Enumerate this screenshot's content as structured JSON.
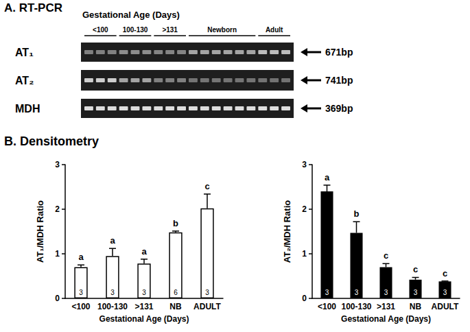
{
  "panel_a": {
    "title": "A. RT-PCR",
    "header": "Gestational Age (Days)",
    "groups": [
      "<100",
      "100-130",
      ">131",
      "Newborn",
      "Adult"
    ],
    "rows": [
      {
        "label": "AT₁",
        "size": "671bp"
      },
      {
        "label": "AT₂",
        "size": "741bp"
      },
      {
        "label": "MDH",
        "size": "369bp"
      }
    ]
  },
  "panel_b": {
    "title": "B. Densitometry"
  },
  "chart_data": [
    {
      "type": "bar",
      "y_label": "AT₁/MDH Ratio",
      "x_label": "Gestational Age (Days)",
      "categories": [
        "<100",
        "100-130",
        ">131",
        "NB",
        "ADULT"
      ],
      "values": [
        0.7,
        0.95,
        0.78,
        1.48,
        2.02
      ],
      "errors": [
        0.05,
        0.17,
        0.1,
        0.03,
        0.32
      ],
      "n": [
        3,
        3,
        3,
        6,
        3
      ],
      "annotations": [
        "a",
        "a",
        "a",
        "b",
        "c"
      ],
      "color": "#ffffff",
      "ylim": [
        0,
        3
      ],
      "yticks": [
        0,
        1,
        2,
        3
      ],
      "grid": false
    },
    {
      "type": "bar",
      "y_label": "AT₂/MDH Ratio",
      "x_label": "Gestational Age (Days)",
      "categories": [
        "<100",
        "100-130",
        ">131",
        "NB",
        "ADULT"
      ],
      "values": [
        2.4,
        1.47,
        0.7,
        0.42,
        0.38
      ],
      "errors": [
        0.14,
        0.25,
        0.08,
        0.05,
        0.01
      ],
      "n": [
        3,
        3,
        3,
        3,
        3
      ],
      "annotations": [
        "a",
        "b",
        "c",
        "c",
        "c"
      ],
      "color": "#000000",
      "ylim": [
        0,
        3
      ],
      "yticks": [
        0,
        1,
        2,
        3
      ],
      "grid": false
    }
  ]
}
